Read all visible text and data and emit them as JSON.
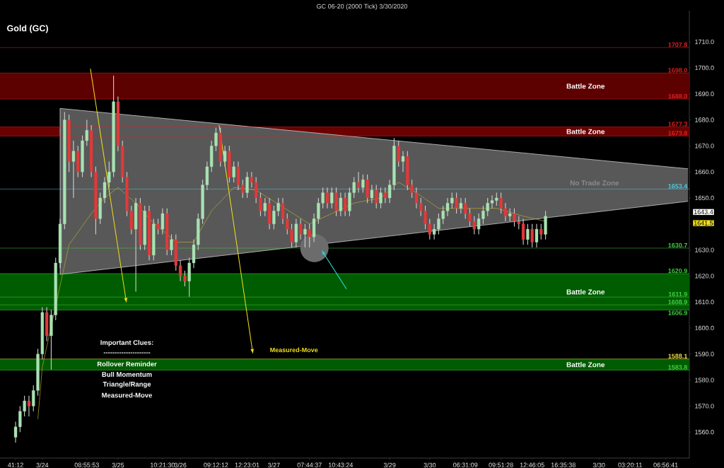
{
  "chart_data": {
    "type": "candlestick",
    "title": "GC 06-20 (2000 Tick)  3/30/2020",
    "subtitle": "Gold (GC)",
    "categories": [
      "41:12",
      null,
      null,
      null,
      null,
      null,
      "3/24",
      null,
      null,
      null,
      null,
      null,
      null,
      null,
      null,
      null,
      "08:55:53",
      null,
      null,
      null,
      null,
      null,
      null,
      "3/25",
      null,
      null,
      null,
      null,
      null,
      null,
      null,
      null,
      null,
      "10:21:30",
      null,
      null,
      null,
      "3/26",
      null,
      null,
      null,
      null,
      null,
      null,
      null,
      "09:12:12",
      null,
      null,
      null,
      null,
      null,
      null,
      "12:23:01",
      null,
      null,
      null,
      null,
      null,
      "3/27",
      null,
      null,
      null,
      null,
      null,
      null,
      null,
      "07:44:37",
      null,
      null,
      null,
      null,
      null,
      null,
      "10:43:24",
      null,
      null,
      null,
      null,
      null,
      null,
      null,
      null,
      null,
      null,
      "3/29",
      null,
      null,
      null,
      null,
      null,
      null,
      null,
      null,
      "3/30",
      null,
      null,
      null,
      null,
      null,
      null,
      null,
      "06:31:09",
      null,
      null,
      null,
      null,
      null,
      null,
      null,
      "09:51:28",
      null,
      null,
      null,
      null,
      null,
      null,
      "12:46:05",
      null,
      null,
      null,
      null,
      null,
      null,
      "16:35:38",
      null,
      null,
      null,
      null,
      null,
      null,
      null,
      "3/30",
      null,
      null,
      null,
      null,
      null,
      null,
      "03:20:11",
      null,
      null,
      null,
      null,
      null,
      null,
      null,
      "06:56:41",
      null,
      null,
      null,
      null,
      null
    ],
    "ohlc": [
      [
        1558,
        1564,
        1556,
        1562
      ],
      [
        1562,
        1570,
        1560,
        1568
      ],
      [
        1568,
        1574,
        1566,
        1572
      ],
      [
        1572,
        1574,
        1566,
        1570
      ],
      [
        1570,
        1578,
        1568,
        1576
      ],
      [
        1576,
        1592,
        1574,
        1590
      ],
      [
        1590,
        1608,
        1588,
        1606
      ],
      [
        1606,
        1608,
        1595,
        1597
      ],
      [
        1597,
        1607,
        1584,
        1605
      ],
      [
        1605,
        1627,
        1603,
        1625
      ],
      [
        1625,
        1642,
        1623,
        1640
      ],
      [
        1640,
        1683,
        1638,
        1680
      ],
      [
        1680,
        1682,
        1660,
        1664
      ],
      [
        1664,
        1672,
        1650,
        1668
      ],
      [
        1668,
        1670,
        1658,
        1660
      ],
      [
        1660,
        1674,
        1658,
        1672
      ],
      [
        1672,
        1680,
        1670,
        1676
      ],
      [
        1676,
        1678,
        1658,
        1660
      ],
      [
        1660,
        1662,
        1636,
        1642
      ],
      [
        1642,
        1652,
        1640,
        1650
      ],
      [
        1650,
        1658,
        1648,
        1656
      ],
      [
        1656,
        1664,
        1654,
        1660
      ],
      [
        1660,
        1697,
        1658,
        1687
      ],
      [
        1687,
        1689,
        1668,
        1670
      ],
      [
        1670,
        1672,
        1656,
        1658
      ],
      [
        1658,
        1660,
        1643,
        1645
      ],
      [
        1645,
        1647,
        1636,
        1638
      ],
      [
        1638,
        1650,
        1614,
        1648
      ],
      [
        1648,
        1650,
        1630,
        1632
      ],
      [
        1632,
        1647,
        1630,
        1645
      ],
      [
        1645,
        1647,
        1626,
        1628
      ],
      [
        1628,
        1642,
        1626,
        1640
      ],
      [
        1640,
        1642,
        1636,
        1638
      ],
      [
        1638,
        1646,
        1636,
        1644
      ],
      [
        1644,
        1646,
        1628,
        1630
      ],
      [
        1630,
        1636,
        1628,
        1634
      ],
      [
        1634,
        1636,
        1622,
        1624
      ],
      [
        1624,
        1626,
        1618,
        1620
      ],
      [
        1620,
        1622,
        1616,
        1618
      ],
      [
        1618,
        1627,
        1612,
        1625
      ],
      [
        1625,
        1634,
        1623,
        1632
      ],
      [
        1632,
        1644,
        1630,
        1642
      ],
      [
        1642,
        1657,
        1640,
        1655
      ],
      [
        1655,
        1664,
        1653,
        1662
      ],
      [
        1662,
        1672,
        1660,
        1670
      ],
      [
        1670,
        1677,
        1668,
        1675
      ],
      [
        1675,
        1677,
        1662,
        1664
      ],
      [
        1664,
        1670,
        1662,
        1668
      ],
      [
        1668,
        1670,
        1656,
        1658
      ],
      [
        1658,
        1664,
        1656,
        1662
      ],
      [
        1662,
        1664,
        1653,
        1655
      ],
      [
        1655,
        1657,
        1650,
        1652
      ],
      [
        1652,
        1660,
        1650,
        1658
      ],
      [
        1658,
        1660,
        1654,
        1656
      ],
      [
        1656,
        1658,
        1648,
        1650
      ],
      [
        1650,
        1652,
        1643,
        1645
      ],
      [
        1645,
        1650,
        1643,
        1648
      ],
      [
        1648,
        1650,
        1638,
        1640
      ],
      [
        1640,
        1647,
        1638,
        1645
      ],
      [
        1645,
        1650,
        1643,
        1648
      ],
      [
        1648,
        1650,
        1640,
        1642
      ],
      [
        1642,
        1644,
        1636,
        1638
      ],
      [
        1638,
        1640,
        1631,
        1633
      ],
      [
        1633,
        1642,
        1631,
        1640
      ],
      [
        1640,
        1642,
        1634,
        1636
      ],
      [
        1636,
        1640,
        1631,
        1638
      ],
      [
        1638,
        1640,
        1631,
        1635
      ],
      [
        1635,
        1644,
        1633,
        1642
      ],
      [
        1642,
        1650,
        1640,
        1648
      ],
      [
        1648,
        1654,
        1646,
        1652
      ],
      [
        1652,
        1654,
        1646,
        1648
      ],
      [
        1648,
        1654,
        1646,
        1652
      ],
      [
        1652,
        1654,
        1643,
        1645
      ],
      [
        1645,
        1652,
        1643,
        1650
      ],
      [
        1650,
        1652,
        1643,
        1645
      ],
      [
        1645,
        1654,
        1643,
        1652
      ],
      [
        1652,
        1658,
        1650,
        1656
      ],
      [
        1656,
        1660,
        1652,
        1654
      ],
      [
        1654,
        1659,
        1652,
        1657
      ],
      [
        1657,
        1659,
        1648,
        1650
      ],
      [
        1650,
        1655,
        1648,
        1653
      ],
      [
        1653,
        1655,
        1646,
        1648
      ],
      [
        1648,
        1654,
        1646,
        1652
      ],
      [
        1652,
        1654,
        1648,
        1650
      ],
      [
        1650,
        1657,
        1648,
        1655
      ],
      [
        1655,
        1673,
        1653,
        1670
      ],
      [
        1670,
        1672,
        1662,
        1664
      ],
      [
        1664,
        1668,
        1660,
        1666
      ],
      [
        1666,
        1668,
        1653,
        1655
      ],
      [
        1655,
        1657,
        1650,
        1652
      ],
      [
        1652,
        1654,
        1646,
        1648
      ],
      [
        1648,
        1650,
        1643,
        1645
      ],
      [
        1645,
        1647,
        1638,
        1640
      ],
      [
        1640,
        1642,
        1634,
        1636
      ],
      [
        1636,
        1640,
        1634,
        1638
      ],
      [
        1638,
        1644,
        1636,
        1642
      ],
      [
        1642,
        1647,
        1640,
        1645
      ],
      [
        1645,
        1650,
        1643,
        1648
      ],
      [
        1648,
        1652,
        1646,
        1650
      ],
      [
        1650,
        1652,
        1644,
        1646
      ],
      [
        1646,
        1650,
        1644,
        1648
      ],
      [
        1648,
        1650,
        1642,
        1644
      ],
      [
        1644,
        1646,
        1639,
        1641
      ],
      [
        1641,
        1643,
        1636,
        1638
      ],
      [
        1638,
        1644,
        1636,
        1642
      ],
      [
        1642,
        1647,
        1640,
        1645
      ],
      [
        1645,
        1650,
        1643,
        1648
      ],
      [
        1648,
        1651,
        1646,
        1649
      ],
      [
        1649,
        1652,
        1647,
        1650
      ],
      [
        1650,
        1652,
        1644,
        1646
      ],
      [
        1646,
        1648,
        1641,
        1643
      ],
      [
        1643,
        1646,
        1641,
        1644
      ],
      [
        1644,
        1646,
        1639,
        1641
      ],
      [
        1641,
        1643,
        1638,
        1640
      ],
      [
        1640,
        1642,
        1632,
        1634
      ],
      [
        1634,
        1640,
        1632,
        1638
      ],
      [
        1638,
        1640,
        1631,
        1633
      ],
      [
        1633,
        1640,
        1631,
        1638
      ],
      [
        1638,
        1640,
        1634,
        1636
      ],
      [
        1636,
        1645,
        1634,
        1643
      ],
      null,
      null,
      null,
      null,
      null,
      null,
      null,
      null,
      null,
      null,
      null,
      null,
      null,
      null,
      null,
      null,
      null,
      null,
      null,
      null,
      null,
      null,
      null,
      null,
      null,
      null,
      null,
      null,
      null,
      null,
      null,
      null
    ],
    "series": [
      {
        "type": "line",
        "color": "#e0e0e0",
        "values": [
          null,
          null,
          null,
          null,
          null,
          null,
          null,
          null,
          null,
          null,
          1684.4,
          null,
          null,
          null,
          null,
          null,
          null,
          null,
          null,
          null,
          null,
          null,
          null,
          null,
          null,
          null,
          null,
          null,
          null,
          null,
          null,
          null,
          null,
          null,
          null,
          null,
          null,
          null,
          null,
          null,
          null,
          null,
          null,
          null,
          null,
          null,
          null,
          null,
          null,
          null,
          null,
          null,
          null,
          null,
          null,
          null,
          null,
          null,
          null,
          null,
          null,
          null,
          null,
          null,
          null,
          null,
          null,
          null,
          null,
          null,
          null,
          null,
          null,
          null,
          null,
          null,
          null,
          null,
          null,
          null,
          null,
          null,
          null,
          null,
          null,
          null,
          null,
          null,
          null,
          null,
          null,
          null,
          null,
          null,
          null,
          null,
          null,
          null,
          null,
          null,
          null,
          null,
          null,
          null,
          null,
          null,
          null,
          null,
          null,
          null,
          null,
          null,
          null,
          null,
          null,
          null,
          null,
          null,
          null,
          null,
          null,
          null,
          null,
          null,
          null,
          null,
          null,
          null,
          null,
          null,
          null,
          null,
          null,
          null,
          null,
          null,
          null,
          null,
          null,
          null,
          null,
          null,
          null,
          null,
          null,
          null,
          null,
          null,
          null,
          null,
          null,
          1661.2
        ]
      },
      {
        "type": "line",
        "color": "#e0e0e0",
        "values": [
          null,
          null,
          null,
          null,
          null,
          null,
          null,
          null,
          null,
          null,
          1620.6,
          null,
          null,
          null,
          null,
          null,
          null,
          null,
          null,
          null,
          null,
          null,
          null,
          null,
          null,
          null,
          null,
          null,
          null,
          null,
          null,
          null,
          null,
          null,
          null,
          null,
          null,
          null,
          null,
          null,
          null,
          null,
          null,
          null,
          null,
          null,
          null,
          null,
          null,
          null,
          null,
          null,
          null,
          null,
          null,
          null,
          null,
          null,
          null,
          null,
          null,
          null,
          null,
          null,
          null,
          null,
          null,
          null,
          null,
          null,
          null,
          null,
          null,
          null,
          null,
          null,
          null,
          null,
          null,
          null,
          null,
          null,
          null,
          null,
          null,
          null,
          null,
          null,
          null,
          null,
          null,
          null,
          null,
          null,
          null,
          null,
          null,
          null,
          null,
          null,
          null,
          null,
          null,
          null,
          null,
          null,
          null,
          null,
          null,
          null,
          null,
          null,
          null,
          null,
          null,
          null,
          null,
          null,
          null,
          null,
          null,
          null,
          null,
          null,
          null,
          null,
          null,
          null,
          null,
          null,
          null,
          null,
          null,
          null,
          null,
          null,
          null,
          null,
          null,
          null,
          null,
          null,
          null,
          null,
          null,
          null,
          null,
          null,
          null,
          null,
          null,
          1648.7
        ]
      },
      {
        "type": "line",
        "color": "#b8a830",
        "values": [
          null,
          null,
          null,
          null,
          null,
          1565,
          1585,
          null,
          null,
          null,
          null,
          null,
          1632,
          null,
          null,
          null,
          null,
          1644,
          null,
          null,
          1650,
          null,
          null,
          1654,
          null,
          null,
          null,
          1648,
          null,
          null,
          1642,
          null,
          null,
          null,
          null,
          null,
          1633,
          null,
          null,
          null,
          1633,
          null,
          null,
          null,
          1645,
          null,
          null,
          null,
          null,
          1654,
          null,
          null,
          null,
          null,
          1653,
          null,
          null,
          null,
          null,
          null,
          null,
          null,
          null,
          null,
          null,
          null,
          1640,
          null,
          null,
          null,
          null,
          1644,
          null,
          null,
          null,
          null,
          1648,
          null,
          null,
          null,
          null,
          null,
          1650,
          null,
          null,
          null,
          1656,
          null,
          null,
          null,
          1652,
          null,
          null,
          null,
          null,
          1646,
          null,
          null,
          null,
          null,
          1646,
          null,
          null,
          null,
          null,
          null,
          null,
          null,
          1646,
          null,
          null,
          null,
          null,
          null,
          1643,
          null,
          null,
          null,
          null,
          1641,
          null,
          null,
          null,
          null,
          null,
          null,
          null,
          null,
          null,
          null,
          null,
          null,
          null,
          null,
          null,
          null,
          null,
          null,
          null,
          null,
          null,
          null,
          null,
          null,
          null,
          null,
          null,
          null,
          null,
          null,
          null,
          null
        ]
      }
    ],
    "ylim": [
      1550,
      1722
    ],
    "yticks": [
      {
        "value": 1560,
        "label": "1560.0"
      },
      {
        "value": 1570,
        "label": "1570.0"
      },
      {
        "value": 1580,
        "label": "1580.0"
      },
      {
        "value": 1590,
        "label": "1590.0"
      },
      {
        "value": 1600,
        "label": "1600.0"
      },
      {
        "value": 1610,
        "label": "1610.0"
      },
      {
        "value": 1620,
        "label": "1620.0"
      },
      {
        "value": 1630,
        "label": "1630.0"
      },
      {
        "value": 1640,
        "label": null
      },
      {
        "value": 1650,
        "label": "1650.0"
      },
      {
        "value": 1660,
        "label": "1660.0"
      },
      {
        "value": 1670,
        "label": "1670.0"
      },
      {
        "value": 1680,
        "label": "1680.0"
      },
      {
        "value": 1690,
        "label": "1690.0"
      },
      {
        "value": 1700,
        "label": "1700.0"
      },
      {
        "value": 1710,
        "label": "1710.0"
      }
    ],
    "bands": [
      {
        "axis": "y",
        "from": 1688.0,
        "to": 1698.0,
        "label": "Battle Zone",
        "color": "#5c0000"
      },
      {
        "axis": "y",
        "from": 1673.8,
        "to": 1677.3,
        "label": "Battle Zone",
        "color": "#6a0000"
      },
      {
        "axis": "y",
        "from": 1606.9,
        "to": 1620.9,
        "label": "Battle Zone",
        "color": "#005c00"
      },
      {
        "axis": "y",
        "from": 1583.8,
        "to": 1588.1,
        "label": "Battle Zone",
        "color": "#005c00"
      }
    ],
    "ref_lines": [
      {
        "axis": "y",
        "value": 1707.8,
        "label": "1707.8",
        "color": "#e02020"
      },
      {
        "axis": "y",
        "value": 1698.0,
        "label": "1698.0",
        "color": "#e02020"
      },
      {
        "axis": "y",
        "value": 1688.0,
        "label": "1688.0",
        "color": "#e02020"
      },
      {
        "axis": "y",
        "value": 1677.3,
        "label": "1677.3",
        "color": "#e02020"
      },
      {
        "axis": "y",
        "value": 1673.8,
        "label": "1673.8",
        "color": "#e02020"
      },
      {
        "axis": "y",
        "value": 1653.4,
        "label": "1653.4",
        "color": "#4fc8e0"
      },
      {
        "axis": "y",
        "value": 1630.7,
        "label": "1630.7",
        "color": "#40d040"
      },
      {
        "axis": "y",
        "value": 1620.9,
        "label": "1620.9",
        "color": "#40d040"
      },
      {
        "axis": "y",
        "value": 1611.9,
        "label": "1611.9",
        "color": "#40d040"
      },
      {
        "axis": "y",
        "value": 1608.9,
        "label": "1608.9",
        "color": "#40d040"
      },
      {
        "axis": "y",
        "value": 1606.9,
        "label": "1606.9",
        "color": "#40d040"
      },
      {
        "axis": "y",
        "value": 1588.1,
        "label": "1588.1",
        "color": "#f0e040"
      },
      {
        "axis": "y",
        "value": 1583.8,
        "label": "1583.8",
        "color": "#40d040"
      }
    ],
    "annotations": [
      "No Trade Zone",
      "Measured-Move",
      "Important Clues:",
      "---------------------",
      "Rollover Reminder",
      "Bull Momentum",
      "Triangle/Range",
      "Measured-Move",
      "1643.4",
      "1641.5"
    ]
  }
}
